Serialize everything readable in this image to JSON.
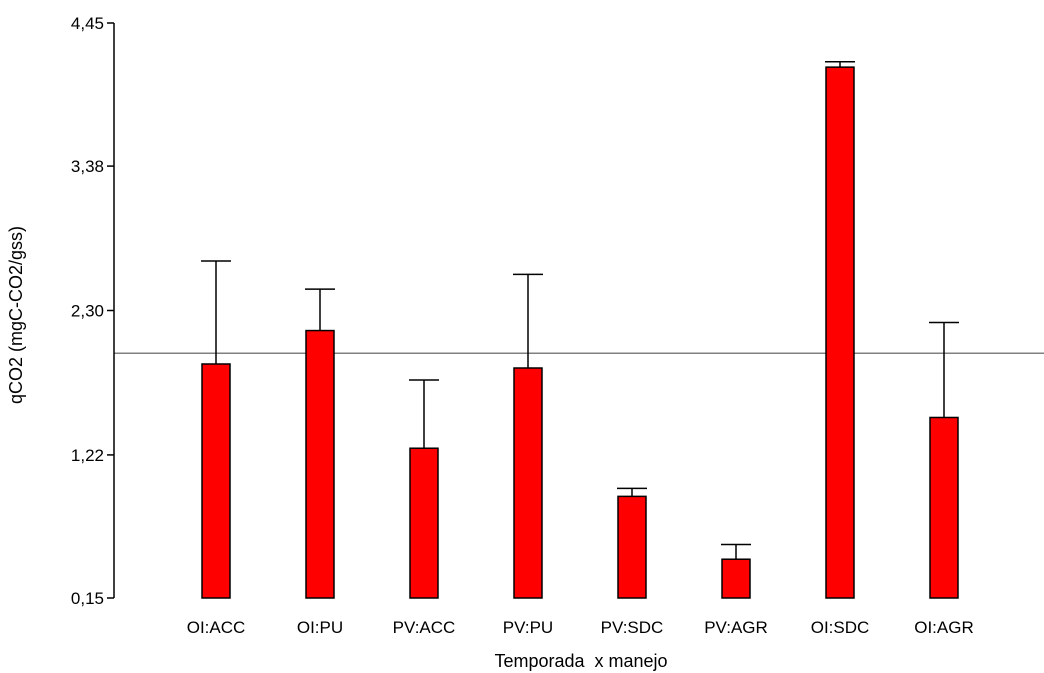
{
  "chart_data": {
    "type": "bar",
    "xlabel": "Temporada  x manejo",
    "ylabel": "qCO2 (mgC-CO2/gss)",
    "ylim": [
      0.15,
      4.45
    ],
    "yticks": [
      0.15,
      1.22,
      2.3,
      3.38,
      4.45
    ],
    "ytick_labels": [
      "0,15",
      "1,22",
      "2,30",
      "3,38",
      "4,45"
    ],
    "categories": [
      "OI:ACC",
      "OI:PU",
      "PV:ACC",
      "PV:PU",
      "PV:SDC",
      "PV:AGR",
      "OI:SDC",
      "OI:AGR"
    ],
    "values": [
      1.9,
      2.15,
      1.27,
      1.87,
      0.91,
      0.44,
      4.12,
      1.5
    ],
    "error_upper": [
      2.67,
      2.46,
      1.78,
      2.57,
      0.97,
      0.55,
      4.16,
      2.21
    ],
    "reference_line": 1.98,
    "bar_color": "#ff0000",
    "error_color": "#000000",
    "reference_color": "#808080"
  }
}
